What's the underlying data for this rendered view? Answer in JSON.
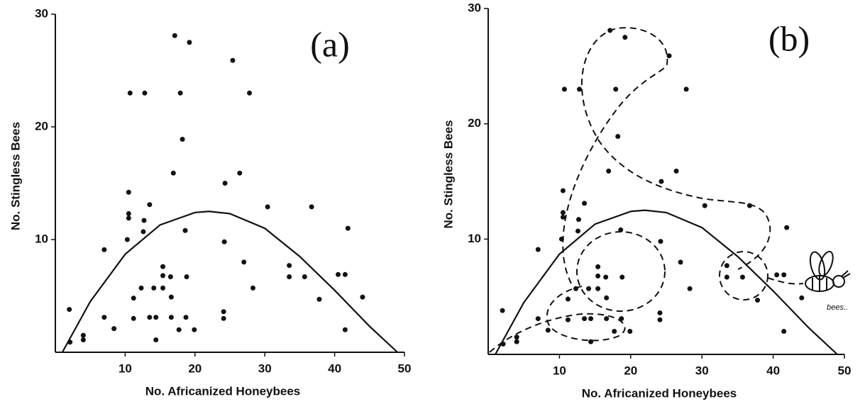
{
  "chart_data": [
    {
      "type": "scatter",
      "annotation": "(a)",
      "x_label": "No. Africanized Honeybees",
      "y_label": "No. Stingless Bees",
      "xlim": [
        0,
        50
      ],
      "ylim": [
        0,
        30
      ],
      "xticks": [
        10,
        20,
        30,
        40,
        50
      ],
      "yticks": [
        10,
        20,
        30
      ],
      "color": "#111111",
      "x": [
        2.0,
        2.1,
        4,
        4,
        7,
        7,
        8.4,
        10.5,
        10.5,
        10.5,
        10.3,
        10.7,
        11.2,
        11.2,
        12.3,
        12.8,
        12.7,
        12.6,
        13.5,
        13.5,
        14.1,
        14.4,
        14.4,
        15.4,
        15.4,
        15.4,
        16.5,
        16.6,
        16.6,
        17.1,
        16.9,
        17.9,
        18.2,
        17.7,
        18.7,
        18.6,
        18.8,
        19.2,
        19.9,
        24.1,
        24.1,
        24.2,
        24.3,
        25.4,
        26.4,
        27,
        27.8,
        28.3,
        30.4,
        33.5,
        33.5,
        35.7,
        36.7,
        37.8,
        40.5,
        41.5,
        41.5,
        41.9,
        44
      ],
      "values": [
        3.8,
        0.9,
        1.5,
        1.1,
        9.1,
        3.1,
        2.1,
        14.2,
        12.3,
        11.9,
        10.0,
        23.0,
        4.8,
        3.0,
        5.7,
        23.0,
        11.7,
        10.7,
        13.1,
        3.1,
        5.7,
        3.1,
        1.1,
        7.6,
        6.8,
        5.7,
        6.7,
        4.9,
        3.1,
        28.1,
        15.9,
        23.0,
        18.9,
        2.0,
        3.1,
        10.8,
        6.7,
        27.5,
        2.0,
        3.6,
        3.0,
        9.8,
        15.0,
        25.9,
        15.9,
        8.0,
        23.0,
        5.7,
        12.9,
        7.7,
        6.7,
        6.7,
        12.9,
        4.7,
        6.9,
        6.9,
        2.0,
        11.0,
        4.9
      ],
      "curve_x": [
        1,
        5,
        10,
        15,
        20,
        22,
        25,
        30,
        35,
        40,
        45,
        49
      ],
      "curve_y": [
        0,
        4.5,
        8.7,
        11.3,
        12.4,
        12.5,
        12.3,
        11.0,
        8.5,
        5.5,
        2.3,
        0
      ]
    },
    {
      "type": "scatter",
      "annotation": "(b)",
      "x_label": "No. Africanized Honeybees",
      "y_label": "No. Stingless Bees",
      "caption": "bees..",
      "xlim": [
        0,
        50
      ],
      "ylim": [
        0,
        30
      ],
      "xticks": [
        10,
        20,
        30,
        40,
        50
      ],
      "yticks": [
        10,
        20,
        30
      ],
      "color": "#111111",
      "x": [
        2.0,
        2.1,
        4,
        4,
        7,
        7,
        8.4,
        10.5,
        10.5,
        10.5,
        10.3,
        10.7,
        11.2,
        11.2,
        12.3,
        12.8,
        12.7,
        12.6,
        13.5,
        13.5,
        14.1,
        14.4,
        14.4,
        15.4,
        15.4,
        15.4,
        16.5,
        16.6,
        16.6,
        17.1,
        16.9,
        17.9,
        18.2,
        17.7,
        18.7,
        18.6,
        18.8,
        19.2,
        19.9,
        24.1,
        24.1,
        24.2,
        24.3,
        25.4,
        26.4,
        27,
        27.8,
        28.3,
        30.4,
        33.5,
        33.5,
        35.7,
        36.7,
        37.8,
        40.5,
        41.5,
        41.5,
        41.9,
        44
      ],
      "values": [
        3.8,
        0.9,
        1.5,
        1.1,
        9.1,
        3.1,
        2.1,
        14.2,
        12.3,
        11.9,
        10.0,
        23.0,
        4.8,
        3.0,
        5.7,
        23.0,
        11.7,
        10.7,
        13.1,
        3.1,
        5.7,
        3.1,
        1.1,
        7.6,
        6.8,
        5.7,
        6.7,
        4.9,
        3.1,
        28.1,
        15.9,
        23.0,
        18.9,
        2.0,
        3.1,
        10.8,
        6.7,
        27.5,
        2.0,
        3.6,
        3.0,
        9.8,
        15.0,
        25.9,
        15.9,
        8.0,
        23.0,
        5.7,
        12.9,
        7.7,
        6.7,
        6.7,
        12.9,
        4.7,
        6.9,
        6.9,
        2.0,
        11.0,
        4.9
      ],
      "curve_x": [
        1,
        5,
        10,
        15,
        20,
        22,
        25,
        30,
        35,
        40,
        45,
        49
      ],
      "curve_y": [
        0,
        4.5,
        8.7,
        11.3,
        12.4,
        12.5,
        12.3,
        11.0,
        8.5,
        5.5,
        2.3,
        0
      ]
    }
  ]
}
